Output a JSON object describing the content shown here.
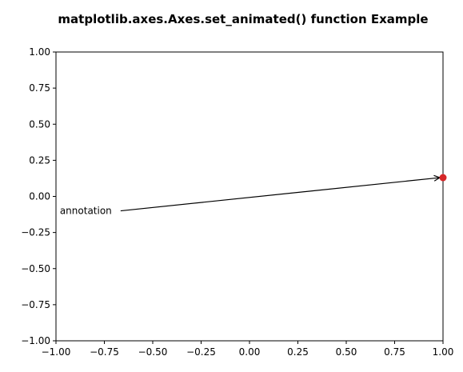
{
  "chart_data": {
    "type": "scatter",
    "title": "matplotlib.axes.Axes.set_animated() function Example",
    "xlabel": "",
    "ylabel": "",
    "xlim": [
      -1.0,
      1.0
    ],
    "ylim": [
      -1.0,
      1.0
    ],
    "xticks": [
      -1.0,
      -0.75,
      -0.5,
      -0.25,
      0.0,
      0.25,
      0.5,
      0.75,
      1.0
    ],
    "yticks": [
      -1.0,
      -0.75,
      -0.5,
      -0.25,
      0.0,
      0.25,
      0.5,
      0.75,
      1.0
    ],
    "xtick_labels": [
      "−1.00",
      "−0.75",
      "−0.50",
      "−0.25",
      "0.00",
      "0.25",
      "0.50",
      "0.75",
      "1.00"
    ],
    "ytick_labels": [
      "−1.00",
      "−0.75",
      "−0.50",
      "−0.25",
      "0.00",
      "0.25",
      "0.50",
      "0.75",
      "1.00"
    ],
    "grid": false,
    "points": [
      {
        "x": 1.0,
        "y": 0.13,
        "color": "#d62728"
      }
    ],
    "annotation": {
      "text": "annotation",
      "text_x": -0.98,
      "text_y": -0.1,
      "arrow_to_x": 1.0,
      "arrow_to_y": 0.13
    }
  }
}
